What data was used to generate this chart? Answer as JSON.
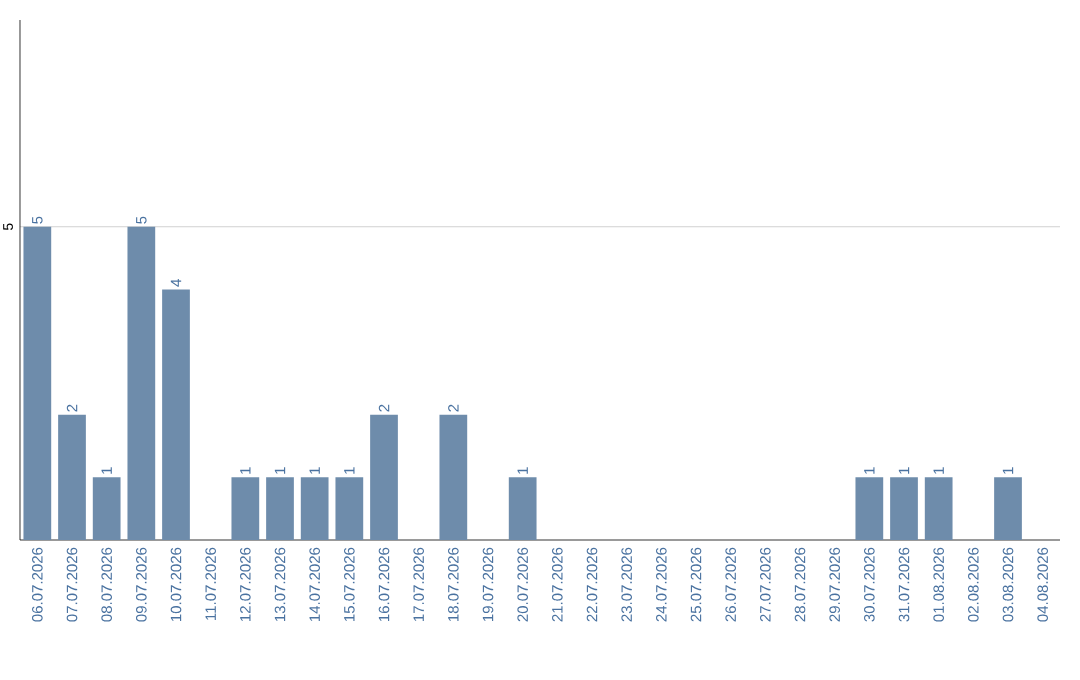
{
  "chart_data": {
    "type": "bar",
    "categories": [
      "06.07.2026",
      "07.07.2026",
      "08.07.2026",
      "09.07.2026",
      "10.07.2026",
      "11.07.2026",
      "12.07.2026",
      "13.07.2026",
      "14.07.2026",
      "15.07.2026",
      "16.07.2026",
      "17.07.2026",
      "18.07.2026",
      "19.07.2026",
      "20.07.2026",
      "21.07.2026",
      "22.07.2026",
      "23.07.2026",
      "24.07.2026",
      "25.07.2026",
      "26.07.2026",
      "27.07.2026",
      "28.07.2026",
      "29.07.2026",
      "30.07.2026",
      "31.07.2026",
      "01.08.2026",
      "02.08.2026",
      "03.08.2026",
      "04.08.2026"
    ],
    "values": [
      5,
      2,
      1,
      5,
      4,
      0,
      1,
      1,
      1,
      1,
      2,
      0,
      2,
      0,
      1,
      0,
      0,
      0,
      0,
      0,
      0,
      0,
      0,
      0,
      1,
      1,
      1,
      0,
      1,
      0
    ],
    "value_labels": [
      "5",
      "2",
      "1",
      "5",
      "4",
      null,
      "1",
      "1",
      "1",
      "1",
      "2",
      null,
      "2",
      null,
      "1",
      null,
      null,
      null,
      null,
      null,
      null,
      null,
      null,
      null,
      "1",
      "1",
      "1",
      null,
      "1",
      null
    ],
    "color": "#6e8cab",
    "ylim": [
      0,
      8.3
    ],
    "yticks": [
      5
    ],
    "grid": "y"
  }
}
